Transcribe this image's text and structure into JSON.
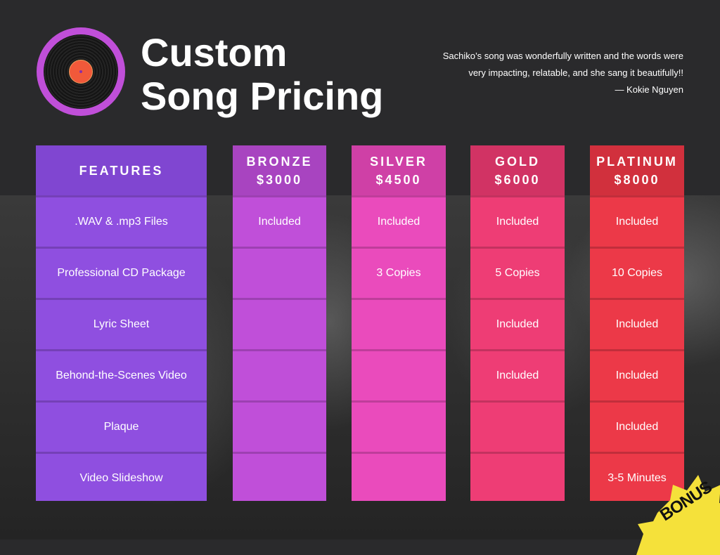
{
  "header": {
    "title_line1": "Custom",
    "title_line2": "Song Pricing",
    "quote_line1": "Sachiko’s song was wonderfully written and the words were",
    "quote_line2": "very impacting, relatable, and she sang it beautifully!!",
    "quote_author": "— Kokie Nguyen"
  },
  "columns": {
    "features": {
      "name": "FEATURES",
      "cells": [
        ".WAV & .mp3 Files",
        "Professional CD Package",
        "Lyric Sheet",
        "Behond-the-Scenes Video",
        "Plaque",
        "Video Slideshow"
      ]
    },
    "bronze": {
      "name": "BRONZE",
      "price": "$3000",
      "cells": [
        "Included",
        "",
        "",
        "",
        "",
        ""
      ]
    },
    "silver": {
      "name": "SILVER",
      "price": "$4500",
      "cells": [
        "Included",
        "3 Copies",
        "",
        "",
        "",
        ""
      ]
    },
    "gold": {
      "name": "GOLD",
      "price": "$6000",
      "cells": [
        "Included",
        "5 Copies",
        "Included",
        "Included",
        "",
        ""
      ]
    },
    "platinum": {
      "name": "PLATINUM",
      "price": "$8000",
      "cells": [
        "Included",
        "10 Copies",
        "Included",
        "Included",
        "Included",
        "3-5 Minutes"
      ]
    }
  },
  "badge": {
    "text": "BONUS"
  },
  "colors": {
    "features": "#8f4fe0",
    "bronze": "#c04fd9",
    "silver": "#ea4bbc",
    "gold": "#ee3d75",
    "platinum": "#ec3948",
    "badge": "#f5e13a",
    "background": "#2a2a2c"
  }
}
